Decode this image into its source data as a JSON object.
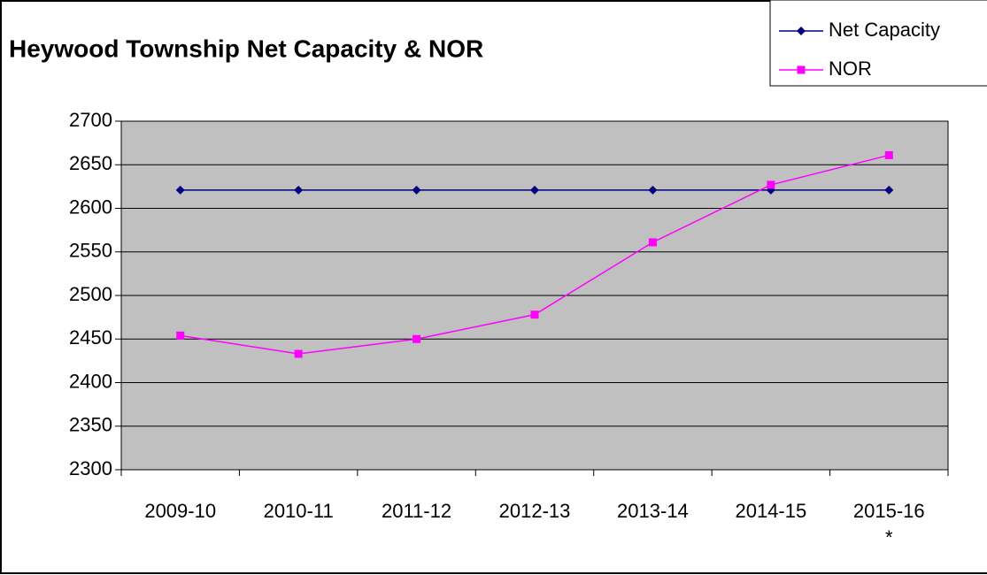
{
  "chart_data": {
    "type": "line",
    "title": "Heywood Township Net Capacity & NOR",
    "categories": [
      "2009-10",
      "2010-11",
      "2011-12",
      "2012-13",
      "2013-14",
      "2014-15",
      "2015-16\n*"
    ],
    "series": [
      {
        "name": "Net Capacity",
        "color": "#000080",
        "marker": "diamond",
        "values": [
          2621,
          2621,
          2621,
          2621,
          2621,
          2621,
          2621
        ]
      },
      {
        "name": "NOR",
        "color": "#ff00ff",
        "marker": "square",
        "values": [
          2454,
          2433,
          2450,
          2478,
          2561,
          2627,
          2661
        ]
      }
    ],
    "ylim": [
      2300,
      2700
    ],
    "yticks": [
      2300,
      2350,
      2400,
      2450,
      2500,
      2550,
      2600,
      2650,
      2700
    ],
    "grid": true,
    "legend": "top-right"
  }
}
